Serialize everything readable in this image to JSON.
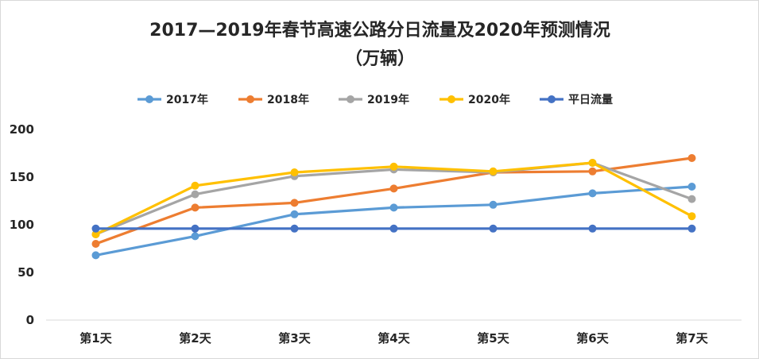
{
  "chart_data": {
    "type": "line",
    "title_line1": "2017—2019年春节高速公路分日流量及2020年预测情况",
    "title_line2": "（万辆）",
    "categories": [
      "第1天",
      "第2天",
      "第3天",
      "第4天",
      "第5天",
      "第6天",
      "第7天"
    ],
    "series": [
      {
        "name": "2017年",
        "color": "#5b9bd5",
        "values": [
          68,
          88,
          111,
          118,
          121,
          133,
          140
        ]
      },
      {
        "name": "2018年",
        "color": "#ed7d31",
        "values": [
          80,
          118,
          123,
          138,
          155,
          156,
          170
        ]
      },
      {
        "name": "2019年",
        "color": "#a5a5a5",
        "values": [
          90,
          132,
          151,
          158,
          155,
          165,
          127
        ]
      },
      {
        "name": "2020年",
        "color": "#ffc000",
        "values": [
          90,
          141,
          155,
          161,
          156,
          165,
          109
        ]
      },
      {
        "name": "平日流量",
        "color": "#4472c4",
        "values": [
          96,
          96,
          96,
          96,
          96,
          96,
          96
        ]
      }
    ],
    "y_ticks": [
      0,
      50,
      100,
      150,
      200
    ],
    "ylim": [
      0,
      200
    ],
    "grid": false,
    "legend": "top"
  }
}
